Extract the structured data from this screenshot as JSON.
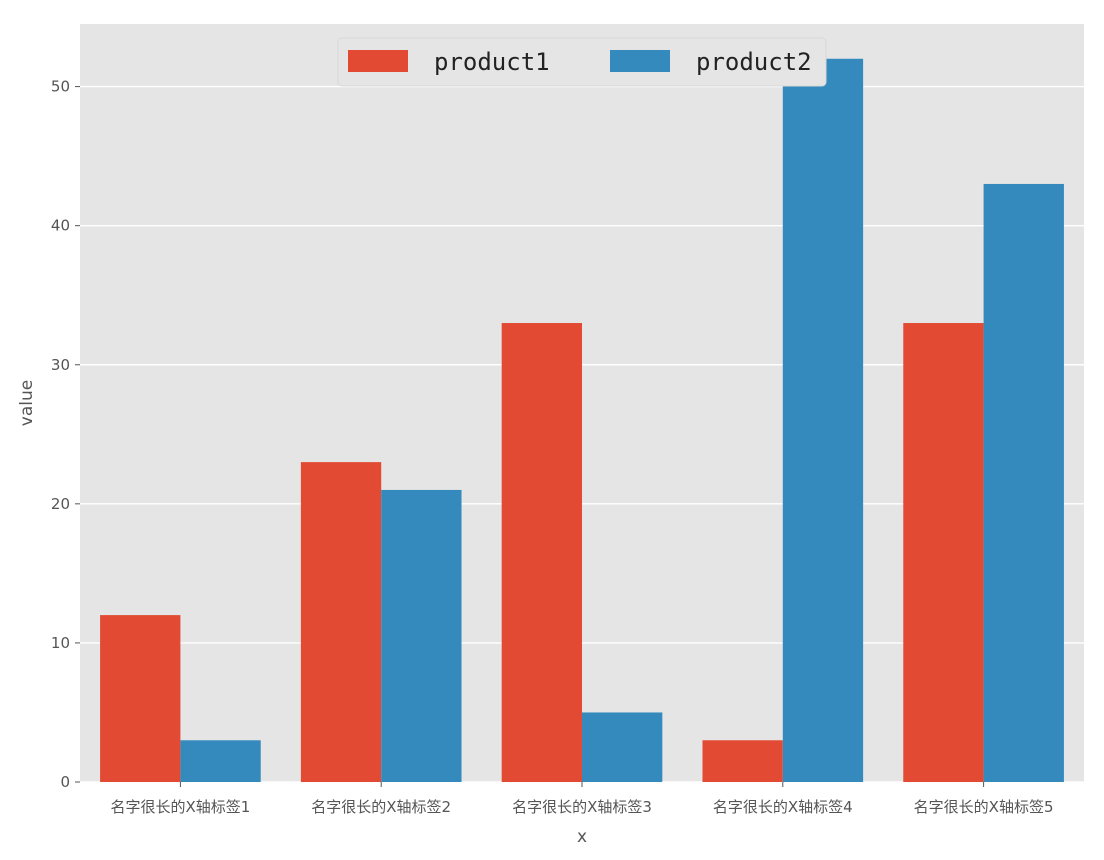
{
  "chart_data": {
    "type": "bar",
    "categories": [
      "名字很长的X轴标签1",
      "名字很长的X轴标签2",
      "名字很长的X轴标签3",
      "名字很长的X轴标签4",
      "名字很长的X轴标签5"
    ],
    "series": [
      {
        "name": "product1",
        "color": "#E24A33",
        "values": [
          12,
          23,
          33,
          3,
          33
        ]
      },
      {
        "name": "product2",
        "color": "#348ABD",
        "values": [
          3,
          21,
          5,
          52,
          43
        ]
      }
    ],
    "xlabel": "x",
    "ylabel": "value",
    "ylim": [
      0,
      54.5
    ],
    "yticks": [
      0,
      10,
      20,
      30,
      40,
      50
    ],
    "grid": true,
    "legend_position": "top-center",
    "background_color": "#E5E5E5",
    "grid_color": "#FFFFFF"
  }
}
